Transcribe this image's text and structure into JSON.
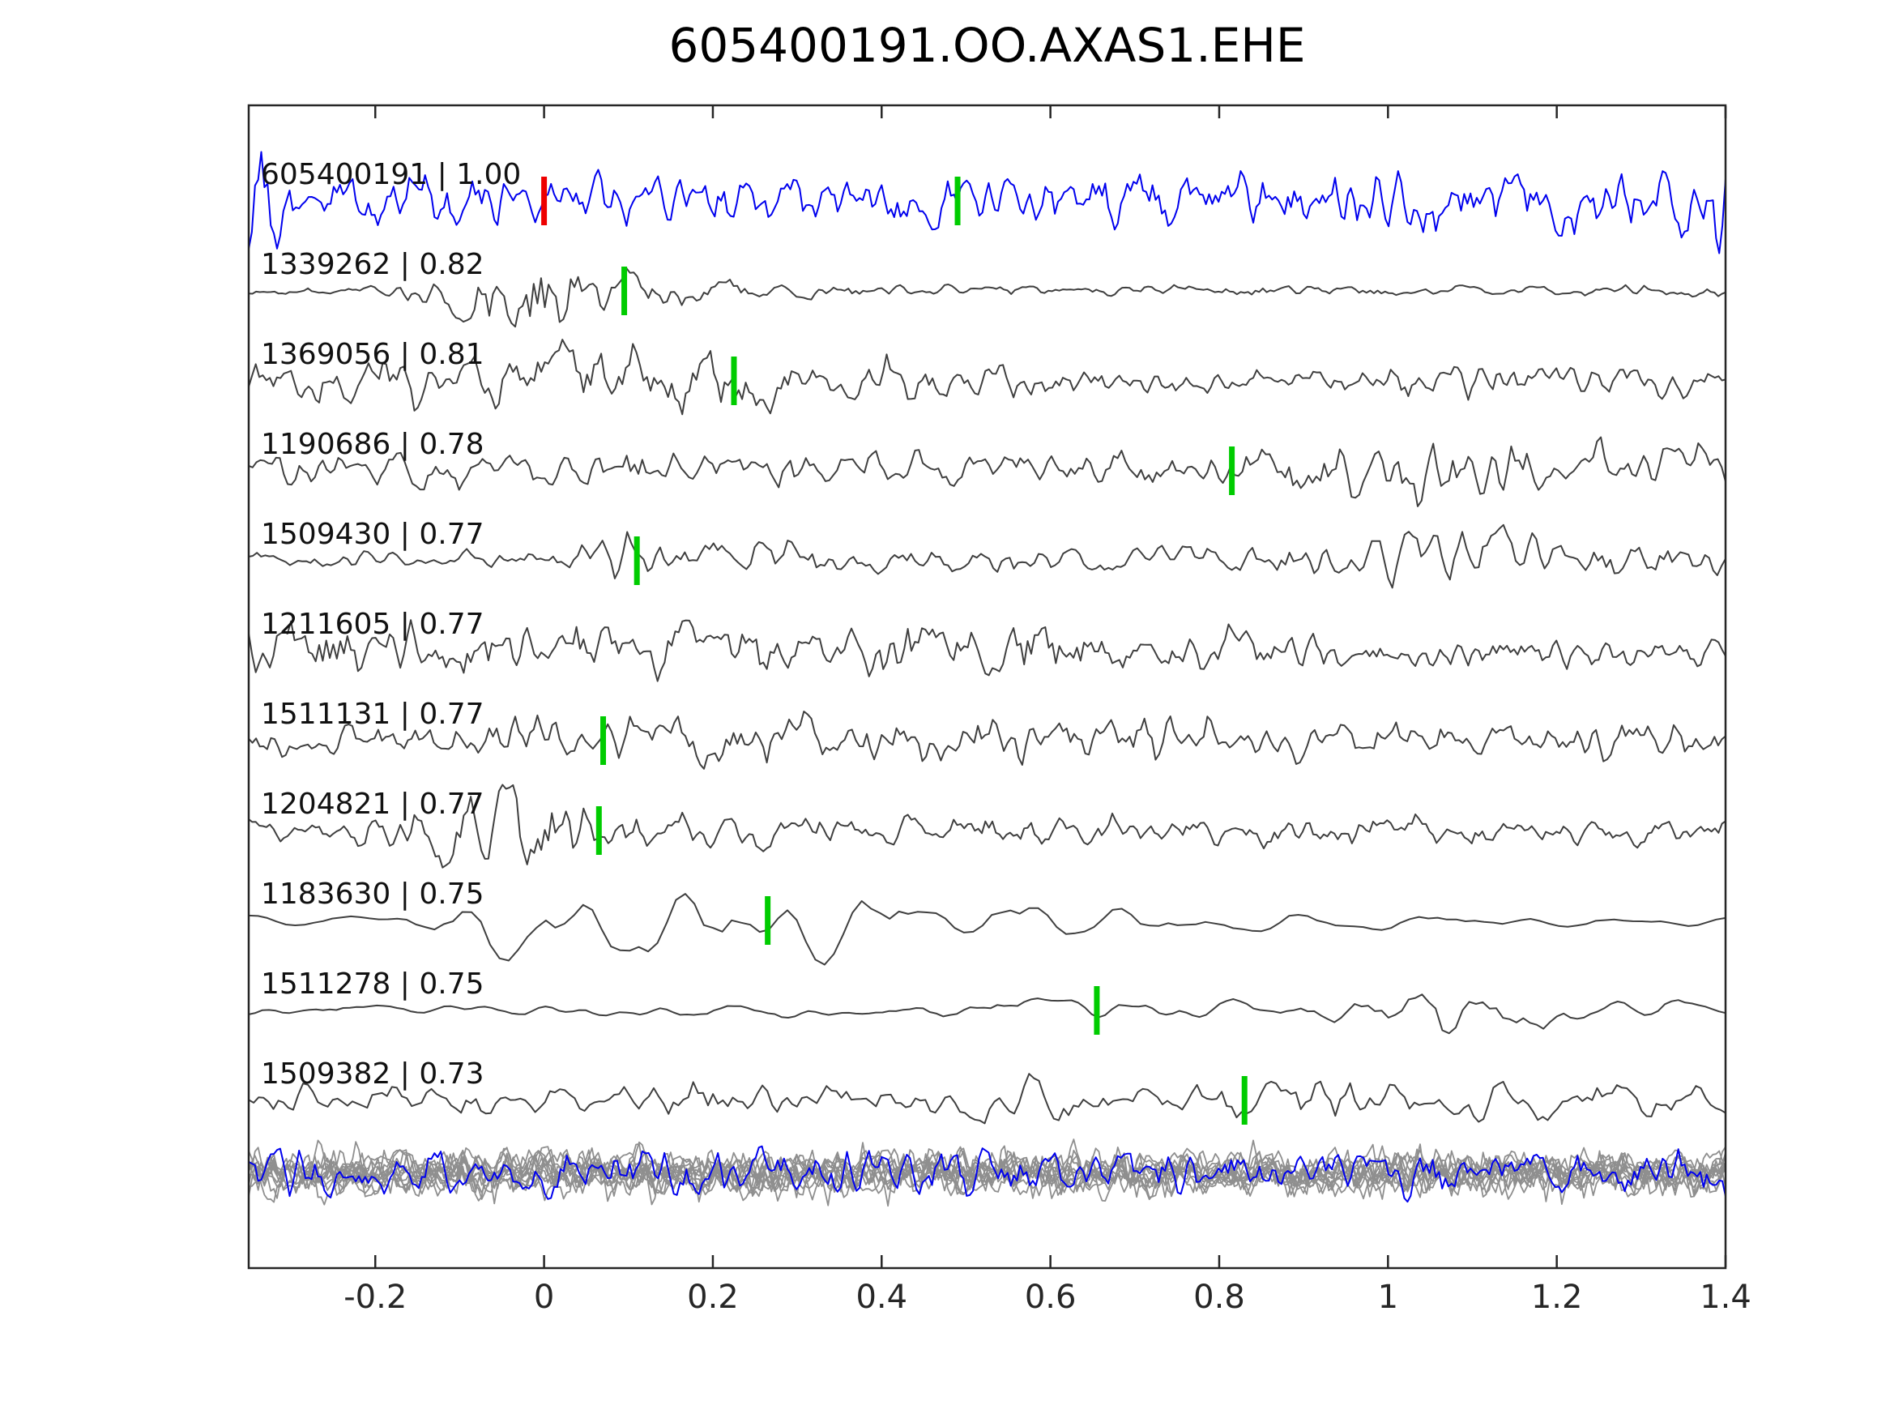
{
  "chart_data": {
    "type": "line",
    "title": "605400191.OO.AXAS1.EHE",
    "xlabel": "",
    "ylabel": "",
    "xlim": [
      -0.35,
      1.4
    ],
    "grid": false,
    "legend": "none",
    "axis_color": "#262626",
    "background": "#ffffff",
    "x_ticks": [
      {
        "value": -0.2,
        "label": "-0.2"
      },
      {
        "value": 0.0,
        "label": "0"
      },
      {
        "value": 0.2,
        "label": "0.2"
      },
      {
        "value": 0.4,
        "label": "0.4"
      },
      {
        "value": 0.6,
        "label": "0.6"
      },
      {
        "value": 0.8,
        "label": "0.8"
      },
      {
        "value": 1.0,
        "label": "1"
      },
      {
        "value": 1.2,
        "label": "1.2"
      },
      {
        "value": 1.4,
        "label": "1.4"
      }
    ],
    "traces": [
      {
        "id": "605400191",
        "score": "1.00",
        "label": "605400191 | 1.00",
        "color": "#0000ee",
        "markers": [
          {
            "x": 0.0,
            "color": "#ee0000"
          },
          {
            "x": 0.49,
            "color": "#00cc00"
          }
        ],
        "synth": {
          "seed": 4021,
          "n": 470,
          "smooth": 1,
          "envelope": [
            [
              -0.35,
              75
            ],
            [
              -0.28,
              34
            ],
            [
              0.2,
              36
            ],
            [
              0.6,
              34
            ],
            [
              1.0,
              36
            ],
            [
              1.3,
              36
            ],
            [
              1.4,
              75
            ]
          ]
        }
      },
      {
        "id": "1339262",
        "score": "0.82",
        "label": "1339262 | 0.82",
        "color": "#3f3f3f",
        "markers": [
          {
            "x": 0.095,
            "color": "#00cc00"
          }
        ],
        "synth": {
          "seed": 118,
          "n": 400,
          "smooth": 1,
          "envelope": [
            [
              -0.35,
              4
            ],
            [
              -0.2,
              6
            ],
            [
              -0.12,
              25
            ],
            [
              -0.06,
              62
            ],
            [
              0.01,
              55
            ],
            [
              0.07,
              32
            ],
            [
              0.14,
              20
            ],
            [
              0.25,
              12
            ],
            [
              0.45,
              9
            ],
            [
              0.8,
              7
            ],
            [
              1.4,
              7
            ]
          ]
        }
      },
      {
        "id": "1369056",
        "score": "0.81",
        "label": "1369056 | 0.81",
        "color": "#3f3f3f",
        "markers": [
          {
            "x": 0.225,
            "color": "#00cc00"
          }
        ],
        "synth": {
          "seed": 207,
          "n": 420,
          "smooth": 1,
          "envelope": [
            [
              -0.35,
              22
            ],
            [
              -0.22,
              38
            ],
            [
              -0.12,
              30
            ],
            [
              -0.02,
              46
            ],
            [
              0.08,
              42
            ],
            [
              0.2,
              38
            ],
            [
              0.32,
              30
            ],
            [
              0.5,
              22
            ],
            [
              0.75,
              16
            ],
            [
              0.95,
              14
            ],
            [
              1.1,
              26
            ],
            [
              1.25,
              24
            ],
            [
              1.4,
              22
            ]
          ]
        }
      },
      {
        "id": "1190686",
        "score": "0.78",
        "label": "1190686 | 0.78",
        "color": "#3f3f3f",
        "markers": [
          {
            "x": 0.815,
            "color": "#00cc00"
          }
        ],
        "synth": {
          "seed": 389,
          "n": 380,
          "smooth": 1,
          "envelope": [
            [
              -0.35,
              25
            ],
            [
              -0.1,
              22
            ],
            [
              0.1,
              26
            ],
            [
              0.35,
              24
            ],
            [
              0.6,
              22
            ],
            [
              0.8,
              26
            ],
            [
              0.95,
              38
            ],
            [
              1.1,
              34
            ],
            [
              1.25,
              40
            ],
            [
              1.4,
              30
            ]
          ]
        }
      },
      {
        "id": "1509430",
        "score": "0.77",
        "label": "1509430 | 0.77",
        "color": "#3f3f3f",
        "markers": [
          {
            "x": 0.11,
            "color": "#00cc00"
          }
        ],
        "synth": {
          "seed": 455,
          "n": 360,
          "smooth": 1,
          "envelope": [
            [
              -0.35,
              12
            ],
            [
              -0.15,
              11
            ],
            [
              0.0,
              16
            ],
            [
              0.08,
              30
            ],
            [
              0.25,
              26
            ],
            [
              0.45,
              18
            ],
            [
              0.7,
              17
            ],
            [
              0.9,
              24
            ],
            [
              1.05,
              42
            ],
            [
              1.18,
              32
            ],
            [
              1.4,
              22
            ]
          ]
        }
      },
      {
        "id": "1211605",
        "score": "0.77",
        "label": "1211605 | 0.77",
        "color": "#3f3f3f",
        "markers": [],
        "synth": {
          "seed": 731,
          "n": 420,
          "smooth": 1,
          "envelope": [
            [
              -0.35,
              36
            ],
            [
              -0.15,
              30
            ],
            [
              0.05,
              34
            ],
            [
              0.3,
              34
            ],
            [
              0.55,
              36
            ],
            [
              0.8,
              28
            ],
            [
              1.0,
              20
            ],
            [
              1.2,
              18
            ],
            [
              1.4,
              20
            ]
          ]
        }
      },
      {
        "id": "1511131",
        "score": "0.77",
        "label": "1511131 | 0.77",
        "color": "#3f3f3f",
        "markers": [
          {
            "x": 0.07,
            "color": "#00cc00"
          }
        ],
        "synth": {
          "seed": 522,
          "n": 400,
          "smooth": 1,
          "envelope": [
            [
              -0.35,
              16
            ],
            [
              -0.18,
              20
            ],
            [
              0.0,
              26
            ],
            [
              0.2,
              30
            ],
            [
              0.45,
              32
            ],
            [
              0.7,
              30
            ],
            [
              0.95,
              28
            ],
            [
              1.15,
              22
            ],
            [
              1.4,
              24
            ]
          ]
        }
      },
      {
        "id": "1204821",
        "score": "0.77",
        "label": "1204821 | 0.77",
        "color": "#3f3f3f",
        "markers": [
          {
            "x": 0.065,
            "color": "#00cc00"
          }
        ],
        "synth": {
          "seed": 640,
          "n": 420,
          "smooth": 1,
          "envelope": [
            [
              -0.35,
              14
            ],
            [
              -0.25,
              18
            ],
            [
              -0.15,
              40
            ],
            [
              -0.08,
              62
            ],
            [
              -0.01,
              55
            ],
            [
              0.08,
              30
            ],
            [
              0.2,
              22
            ],
            [
              0.45,
              18
            ],
            [
              0.8,
              19
            ],
            [
              1.1,
              17
            ],
            [
              1.4,
              21
            ]
          ]
        }
      },
      {
        "id": "1183630",
        "score": "0.75",
        "label": "1183630 | 0.75",
        "color": "#3f3f3f",
        "markers": [
          {
            "x": 0.265,
            "color": "#00cc00"
          }
        ],
        "synth": {
          "seed": 808,
          "n": 160,
          "smooth": 2,
          "envelope": [
            [
              -0.35,
              7
            ],
            [
              -0.18,
              10
            ],
            [
              -0.08,
              40
            ],
            [
              0.02,
              62
            ],
            [
              0.15,
              65
            ],
            [
              0.3,
              58
            ],
            [
              0.45,
              42
            ],
            [
              0.6,
              30
            ],
            [
              0.75,
              20
            ],
            [
              0.9,
              12
            ],
            [
              1.1,
              8
            ],
            [
              1.4,
              7
            ]
          ]
        }
      },
      {
        "id": "1511278",
        "score": "0.75",
        "label": "1511278 | 0.75",
        "color": "#3f3f3f",
        "markers": [
          {
            "x": 0.655,
            "color": "#00cc00"
          }
        ],
        "synth": {
          "seed": 911,
          "n": 220,
          "smooth": 2,
          "envelope": [
            [
              -0.35,
              6
            ],
            [
              -0.1,
              7
            ],
            [
              0.2,
              9
            ],
            [
              0.45,
              11
            ],
            [
              0.6,
              14
            ],
            [
              0.75,
              12
            ],
            [
              0.9,
              16
            ],
            [
              1.0,
              28
            ],
            [
              1.07,
              48
            ],
            [
              1.15,
              42
            ],
            [
              1.25,
              16
            ],
            [
              1.4,
              13
            ]
          ]
        }
      },
      {
        "id": "1509382",
        "score": "0.73",
        "label": "1509382 | 0.73",
        "color": "#3f3f3f",
        "markers": [
          {
            "x": 0.83,
            "color": "#00cc00"
          }
        ],
        "synth": {
          "seed": 1037,
          "n": 300,
          "smooth": 1,
          "envelope": [
            [
              -0.35,
              24
            ],
            [
              -0.15,
              18
            ],
            [
              0.05,
              20
            ],
            [
              0.25,
              30
            ],
            [
              0.45,
              26
            ],
            [
              0.6,
              30
            ],
            [
              0.75,
              20
            ],
            [
              0.9,
              26
            ],
            [
              1.05,
              30
            ],
            [
              1.2,
              22
            ],
            [
              1.4,
              18
            ]
          ]
        }
      }
    ],
    "overlay": {
      "gray_color": "#8f8f8f",
      "gray_count": 12,
      "gray_seed": 2222,
      "gray_amp": 27,
      "blue_color": "#0000ee",
      "blue_seed": 3141,
      "blue_amp": 30,
      "n": 470,
      "smooth": 1
    },
    "colors": {
      "template_trace": "#0000ee",
      "detection_trace": "#3f3f3f",
      "pick_marker_green": "#00cc00",
      "pick_marker_red": "#ee0000"
    }
  }
}
